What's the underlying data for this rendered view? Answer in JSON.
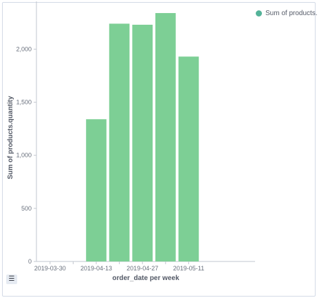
{
  "chart_data": {
    "type": "bar",
    "categories": [
      "2019-03-30",
      "2019-04-06",
      "2019-04-13",
      "2019-04-20",
      "2019-04-27",
      "2019-05-04",
      "2019-05-11"
    ],
    "series": [
      {
        "name": "Sum of products.quantity",
        "values": [
          0,
          0,
          1340,
          2240,
          2230,
          2340,
          1930
        ]
      }
    ],
    "x_tick_labels": [
      "2019-03-30",
      "2019-04-13",
      "2019-04-27",
      "2019-05-11"
    ],
    "y_ticks": [
      0,
      500,
      1000,
      1500,
      2000
    ],
    "y_tick_labels": [
      "0",
      "500",
      "1,000",
      "1,500",
      "2,000"
    ],
    "ylim": [
      0,
      2450
    ],
    "xlabel": "order_date per week",
    "ylabel": "Sum of products.quantity",
    "grid": false,
    "legend_position": "top-right",
    "bar_color": "#7dcf95"
  },
  "legend": {
    "label": "Sum of products.",
    "color": "#54b399",
    "toggle_icon": "list-icon",
    "toggle_glyph": "☰"
  }
}
